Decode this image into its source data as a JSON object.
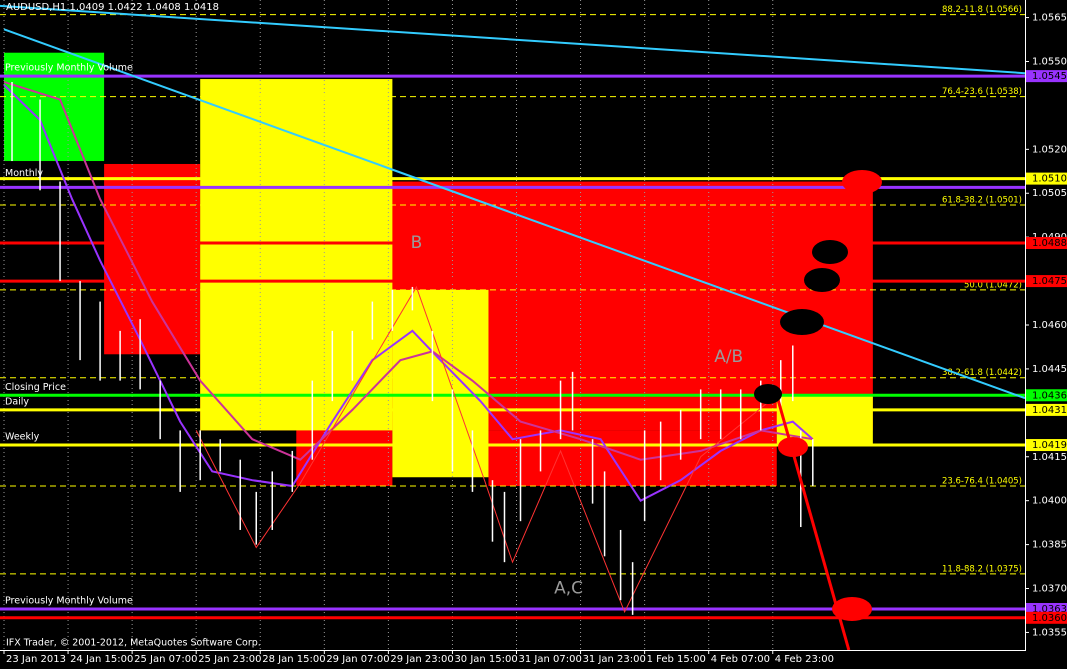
{
  "chart_data": {
    "type": "candlestick",
    "title": "AUDUSD,H1  1.0409 1.0422 1.0408 1.0418",
    "copyright": "IFX Trader, © 2001-2012, MetaQuotes Software Corp.",
    "xlim": [
      -1,
      255
    ],
    "ylim": [
      1.0349,
      1.0571
    ],
    "xticks": [
      {
        "value": 0,
        "label": "23 Jan 2013"
      },
      {
        "value": 16,
        "label": "24 Jan 15:00"
      },
      {
        "value": 32,
        "label": "25 Jan 07:00"
      },
      {
        "value": 48,
        "label": "25 Jan 23:00"
      },
      {
        "value": 64,
        "label": "28 Jan 15:00"
      },
      {
        "value": 80,
        "label": "29 Jan 07:00"
      },
      {
        "value": 96,
        "label": "29 Jan 23:00"
      },
      {
        "value": 112,
        "label": "30 Jan 15:00"
      },
      {
        "value": 128,
        "label": "31 Jan 07:00"
      },
      {
        "value": 144,
        "label": "31 Jan 23:00"
      },
      {
        "value": 160,
        "label": "1 Feb 15:00"
      },
      {
        "value": 176,
        "label": "4 Feb 07:00"
      },
      {
        "value": 192,
        "label": "4 Feb 23:00"
      }
    ],
    "yticks": [
      1.0565,
      {
        "value": 1.055,
        "label": "1.0550"
      },
      {
        "value": 1.052,
        "label": "1.0520"
      },
      1.0505,
      {
        "value": 1.049,
        "label": "1.0490"
      },
      {
        "value": 1.046,
        "label": "1.0460"
      },
      1.0445,
      1.0415,
      {
        "value": 1.04,
        "label": "1.0400"
      },
      1.0385,
      {
        "value": 1.037,
        "label": "1.0370"
      },
      1.0355
    ],
    "bar_color": "#ffffff",
    "x": [
      2,
      9,
      14,
      19,
      24,
      29,
      34,
      39,
      44,
      49,
      54,
      59,
      63,
      67,
      72,
      77,
      82,
      87,
      92,
      97,
      102,
      107,
      112,
      117,
      122,
      125,
      129,
      134,
      139,
      142,
      147,
      150,
      154,
      157,
      160,
      164,
      169,
      174,
      179,
      184,
      189,
      194,
      197,
      199,
      202
    ],
    "high": [
      1.0543,
      1.0537,
      1.0509,
      1.0475,
      1.0468,
      1.0458,
      1.0462,
      1.0441,
      1.0424,
      1.0424,
      1.0421,
      1.0414,
      1.0403,
      1.041,
      1.0417,
      1.0441,
      1.0458,
      1.0458,
      1.0468,
      1.0472,
      1.0473,
      1.0458,
      1.0438,
      1.0424,
      1.0407,
      1.0403,
      1.0421,
      1.0424,
      1.0441,
      1.0444,
      1.0421,
      1.041,
      1.039,
      1.0379,
      1.0424,
      1.0427,
      1.0431,
      1.0438,
      1.0438,
      1.0438,
      1.0441,
      1.0448,
      1.0453,
      1.0424,
      1.0421
    ],
    "low": [
      1.0516,
      1.0506,
      1.0475,
      1.0448,
      1.0441,
      1.0441,
      1.0438,
      1.0421,
      1.0403,
      1.0407,
      1.041,
      1.039,
      1.0385,
      1.039,
      1.0403,
      1.0414,
      1.0434,
      1.0441,
      1.0455,
      1.0458,
      1.0465,
      1.0434,
      1.041,
      1.0403,
      1.0386,
      1.0379,
      1.0393,
      1.041,
      1.0421,
      1.0424,
      1.0399,
      1.0381,
      1.0366,
      1.0361,
      1.0393,
      1.0407,
      1.0414,
      1.0421,
      1.0421,
      1.0421,
      1.0424,
      1.0431,
      1.0434,
      1.0391,
      1.0405
    ],
    "zones": [
      {
        "color": "#ff0000",
        "x": [
          25,
          49
        ],
        "y": [
          1.0515,
          1.045
        ]
      },
      {
        "color": "#ff0000",
        "x": [
          49,
          217
        ],
        "y": [
          1.0509,
          1.0424
        ]
      },
      {
        "color": "#ff0000",
        "x": [
          73,
          97
        ],
        "y": [
          1.0424,
          1.0405
        ]
      },
      {
        "color": "#ff0000",
        "x": [
          121,
          193
        ],
        "y": [
          1.0424,
          1.0405
        ]
      },
      {
        "color": "#00ff00",
        "x": [
          0,
          25
        ],
        "y": [
          1.0553,
          1.0516
        ]
      },
      {
        "color": "#ffff00",
        "x": [
          49,
          97
        ],
        "y": [
          1.0544,
          1.0424
        ]
      },
      {
        "color": "#ffff00",
        "x": [
          97,
          121
        ],
        "y": [
          1.0472,
          1.0408
        ]
      },
      {
        "color": "#ffff00",
        "x": [
          193,
          217
        ],
        "y": [
          1.0436,
          1.0419
        ]
      }
    ],
    "moving_averages": [
      {
        "color": "#9933ff",
        "x": [
          0,
          9,
          17,
          24,
          34,
          44,
          52,
          62,
          72,
          82,
          92,
          102,
          109,
          119,
          127,
          139,
          149,
          159,
          169,
          179,
          189,
          197,
          202
        ],
        "y": [
          1.0542,
          1.053,
          1.0503,
          1.0482,
          1.0455,
          1.0427,
          1.041,
          1.0407,
          1.0405,
          1.0427,
          1.0448,
          1.0458,
          1.0448,
          1.0434,
          1.0421,
          1.0424,
          1.0421,
          1.04,
          1.0407,
          1.0417,
          1.0424,
          1.0427,
          1.0421
        ]
      },
      {
        "color": "#cc3399",
        "x": [
          0,
          14,
          24,
          37,
          49,
          62,
          74,
          87,
          99,
          107,
          117,
          129,
          144,
          159,
          174,
          189,
          202
        ],
        "y": [
          1.0543,
          1.0537,
          1.0503,
          1.0468,
          1.0441,
          1.0421,
          1.0414,
          1.0431,
          1.0448,
          1.0451,
          1.0441,
          1.0427,
          1.0421,
          1.0414,
          1.0417,
          1.0424,
          1.0421
        ]
      }
    ],
    "zigzag": {
      "color": "#ff3333",
      "x": [
        48,
        63,
        74,
        103,
        120,
        127,
        139,
        155,
        174,
        193
      ],
      "y": [
        1.0424,
        1.0384,
        1.0406,
        1.0473,
        1.0407,
        1.0379,
        1.0417,
        1.0362,
        1.0415,
        1.0436
      ]
    },
    "trendlines": [
      {
        "color": "#33ccff",
        "x": [
          -1,
          255
        ],
        "y": [
          1.0569,
          1.0546
        ]
      },
      {
        "color": "#33ccff",
        "x": [
          0,
          255
        ],
        "y": [
          1.0561,
          1.0435
        ]
      },
      {
        "color": "#ff0000",
        "x": [
          193,
          211
        ],
        "y": [
          1.0436,
          1.0349
        ]
      }
    ],
    "price_lines": [
      {
        "color": "#9933ff",
        "price": {
          "value": 1.0545,
          "label": "1.0545"
        }
      },
      {
        "color": "#9933ff",
        "price": 1.0507
      },
      {
        "color": "#ffff00",
        "price": {
          "value": 1.051,
          "label": "1.0510"
        }
      },
      {
        "color": "#ff0000",
        "price": {
          "value": 1.0488,
          "label": "1.0488"
        }
      },
      {
        "color": "#ff0000",
        "price": {
          "value": 1.0475,
          "label": "1.0475"
        }
      },
      {
        "color": "#00ff00",
        "price": {
          "value": 1.0436,
          "label": "1.0436"
        }
      },
      {
        "color": "#ffff00",
        "price": {
          "value": 1.0431,
          "label": "1.0431"
        }
      },
      {
        "color": "#ffff00",
        "price": {
          "value": 1.0419,
          "label": "1.0419"
        }
      },
      {
        "color": "#9933ff",
        "price": {
          "value": 1.0363,
          "label": "1.0363"
        }
      },
      {
        "color": "#ff0000",
        "price": {
          "value": 1.036,
          "label": "1.0360"
        }
      }
    ],
    "fib_color": "#ffff00",
    "fib_levels": [
      {
        "value": 1.0566,
        "label": "88.2-11.8 (1.0566)"
      },
      {
        "value": 1.0538,
        "label": "76.4-23.6 (1.0538)"
      },
      {
        "value": 1.0501,
        "label": "61.8-38.2 (1.0501)"
      },
      {
        "value": 1.0472,
        "label": "50.0 (1.0472)"
      },
      {
        "value": 1.0442,
        "label": "38.2-61.8 (1.0442)"
      },
      {
        "value": 1.0405,
        "label": "23.6-76.4 (1.0405)"
      },
      {
        "value": 1.0375,
        "label": "11.8-88.2 (1.0375)"
      }
    ],
    "line_notes": [
      {
        "text": "Previously Monthly Volume",
        "price": 1.0546
      },
      {
        "text": "Monthly",
        "price": 1.051
      },
      {
        "text": "Closing Price",
        "price": 1.0437
      },
      {
        "text": "Daily",
        "price": 1.0432
      },
      {
        "text": "Weekly",
        "price": 1.042
      },
      {
        "text": "Previously Monthly Volume",
        "price": 1.0364
      }
    ],
    "annotations": [
      {
        "text": "B",
        "x": 103,
        "y": 1.0488
      },
      {
        "text": "A/B",
        "x": 181,
        "y": 1.0449
      },
      {
        "text": "A,C",
        "x": 141,
        "y": 1.037
      }
    ]
  }
}
